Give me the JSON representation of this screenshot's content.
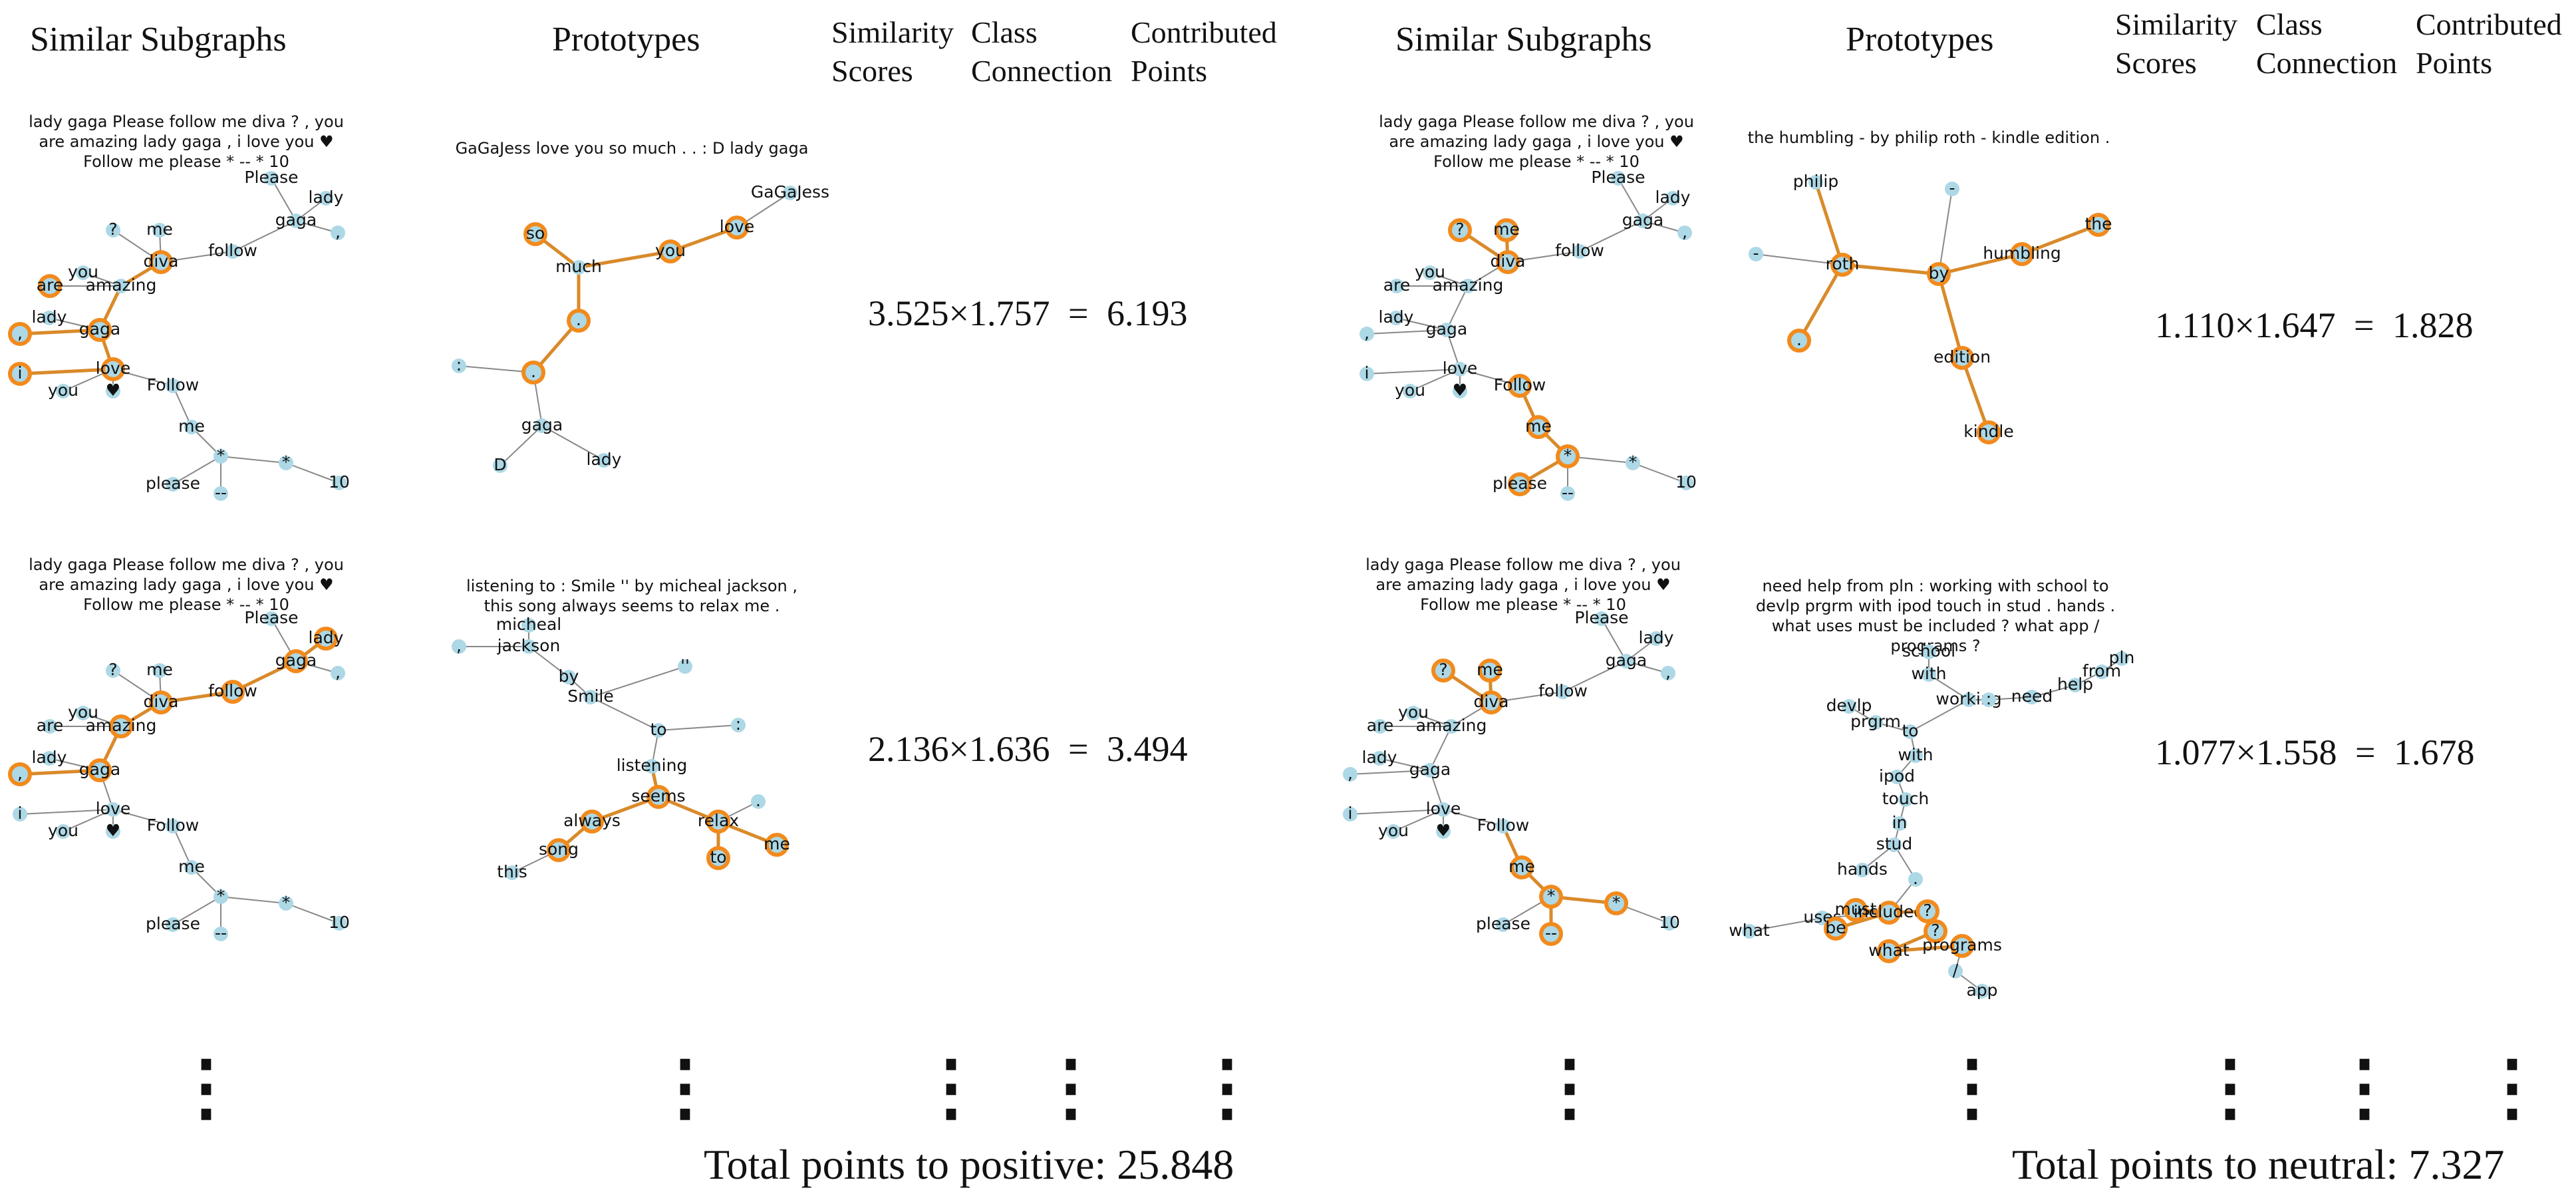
{
  "left": {
    "headers": {
      "similar": "Similar Subgraphs",
      "prototypes": "Prototypes",
      "similarity": "Similarity Scores",
      "class_connection": "Class Connection",
      "contributed": "Contributed Points"
    },
    "rows": [
      {
        "subgraph_caption": "lady gaga Please follow me diva ? , you are amazing lady gaga , i love you ♥ Follow me please * -- * 10",
        "prototype_caption": "GaGaJess love you so much . . : D lady gaga",
        "score_a": "3.525",
        "score_b": "1.757",
        "points": "6.193",
        "subgraph_nodes": [
          "Please",
          "lady",
          "gaga",
          ",",
          "?",
          "me",
          "diva",
          "follow",
          "you",
          "are",
          "amazing",
          "lady",
          ",",
          "gaga",
          "i",
          "love",
          "you",
          "♥",
          "Follow",
          "me",
          "*",
          "*",
          "please",
          "--",
          "10"
        ],
        "prototype_nodes": [
          "so",
          "love",
          "GaGaJess",
          "much",
          "you",
          ".",
          ":",
          ".",
          "gaga",
          "D",
          "lady"
        ]
      },
      {
        "subgraph_caption": "lady gaga Please follow me diva ? , you are amazing lady gaga , i love you ♥ Follow me please * -- * 10",
        "prototype_caption": "listening to : Smile '' by micheal jackson , this song always seems to relax me .",
        "score_a": "2.136",
        "score_b": "1.636",
        "points": "3.494",
        "subgraph_nodes": [
          "Please",
          "lady",
          "gaga",
          ",",
          "?",
          "me",
          "diva",
          "follow",
          "you",
          "are",
          "amazing",
          "lady",
          ",",
          "gaga",
          "i",
          "love",
          "you",
          "♥",
          "Follow",
          "me",
          "*",
          "*",
          "please",
          "--",
          "10"
        ],
        "prototype_nodes": [
          "micheal",
          ",",
          "jackson",
          "by",
          "''",
          "Smile",
          ":",
          "to",
          "listening",
          "seems",
          "always",
          "relax",
          ".",
          "song",
          "to",
          "me",
          "this"
        ]
      }
    ],
    "total_label": "Total points to positive:",
    "total_value": "25.848"
  },
  "right": {
    "headers": {
      "similar": "Similar Subgraphs",
      "prototypes": "Prototypes",
      "similarity": "Similarity Scores",
      "class_connection": "Class Connection",
      "contributed": "Contributed Points"
    },
    "rows": [
      {
        "subgraph_caption": "lady gaga Please follow me diva ? , you are amazing lady gaga , i love you ♥ Follow me please * -- * 10",
        "prototype_caption": "the humbling - by philip roth - kindle edition .",
        "score_a": "1.110",
        "score_b": "1.647",
        "points": "1.828",
        "subgraph_nodes": [
          "Please",
          "lady",
          "gaga",
          ",",
          "?",
          "me",
          "diva",
          "follow",
          "you",
          "are",
          "amazing",
          "lady",
          ",",
          "gaga",
          "i",
          "love",
          "you",
          "♥",
          "Follow",
          "me",
          "*",
          "*",
          "please",
          "--",
          "10"
        ],
        "prototype_nodes": [
          "philip",
          "-",
          "the",
          "-",
          "roth",
          "by",
          "humbling",
          ".",
          "edition",
          "kindle"
        ]
      },
      {
        "subgraph_caption": "lady gaga Please follow me diva ? , you are amazing lady gaga , i love you ♥ Follow me please * -- * 10",
        "prototype_caption": "need help from pln : working with school to devlp prgrm with ipod touch in stud . hands . what uses must be included ? what app / programs ?",
        "score_a": "1.077",
        "score_b": "1.558",
        "points": "1.678",
        "subgraph_nodes": [
          "Please",
          "lady",
          "gaga",
          ",",
          "?",
          "me",
          "diva",
          "follow",
          "you",
          "are",
          "amazing",
          "lady",
          ",",
          "gaga",
          "i",
          "love",
          "you",
          "♥",
          "Follow",
          "me",
          "*",
          "*",
          "please",
          "--",
          "10"
        ],
        "prototype_nodes": [
          "school",
          "with",
          "working",
          ":",
          "need",
          "help",
          "from",
          "pln",
          "devlp",
          "prgrm",
          "to",
          "with",
          "ipod",
          "touch",
          "in",
          "stud",
          "hands",
          ".",
          "must",
          "uses",
          "included",
          "?",
          "be",
          "?",
          "what",
          "what",
          "programs",
          "/",
          "app"
        ]
      }
    ],
    "total_label": "Total points to neutral:",
    "total_value": "7.327"
  },
  "symbols": {
    "times": "×",
    "equals": "=",
    "vdots": "⋮"
  },
  "colors": {
    "node": "#add8e6",
    "highlight": "#f28a1c",
    "edge": "#888888",
    "highlight_edge": "#d98a2a"
  }
}
